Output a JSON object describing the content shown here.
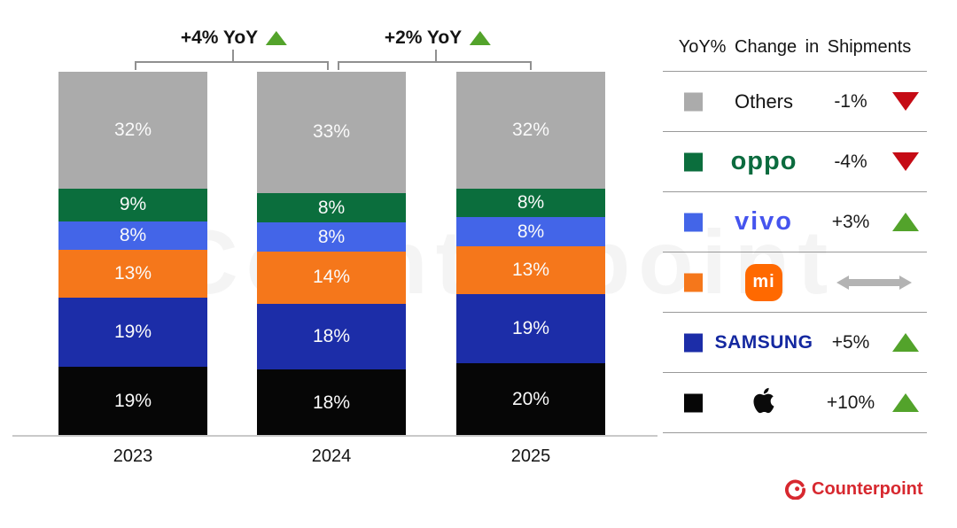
{
  "chart_data": {
    "type": "bar",
    "stacked": true,
    "order": "top-to-bottom",
    "unit": "%",
    "categories": [
      "2023",
      "2024",
      "2025"
    ],
    "series": [
      {
        "name": "Others",
        "color": "#ababab",
        "values": [
          32,
          33,
          32
        ]
      },
      {
        "name": "OPPO",
        "color": "#0b6e3d",
        "values": [
          9,
          8,
          8
        ]
      },
      {
        "name": "vivo",
        "color": "#4365e8",
        "values": [
          8,
          8,
          8
        ]
      },
      {
        "name": "Xiaomi",
        "color": "#f5771b",
        "values": [
          13,
          14,
          13
        ]
      },
      {
        "name": "Samsung",
        "color": "#1c2da8",
        "values": [
          19,
          18,
          19
        ]
      },
      {
        "name": "Apple",
        "color": "#060606",
        "values": [
          19,
          18,
          20
        ]
      }
    ],
    "annotations": [
      {
        "label": "+4% YoY",
        "between": [
          "2023",
          "2024"
        ],
        "direction": "up"
      },
      {
        "label": "+2% YoY",
        "between": [
          "2024",
          "2025"
        ],
        "direction": "up"
      }
    ],
    "ylim": [
      0,
      100
    ],
    "grid": false,
    "legend_position": "right"
  },
  "legend": {
    "title": "YoY% Change in Shipments",
    "rows": [
      {
        "brand": "Others",
        "logo": "text",
        "logo_text": "Others",
        "swatch": "#ababab",
        "change": "-1%",
        "trend": "down"
      },
      {
        "brand": "OPPO",
        "logo": "oppo",
        "logo_text": "oppo",
        "swatch": "#0b6e3d",
        "change": "-4%",
        "trend": "down"
      },
      {
        "brand": "vivo",
        "logo": "vivo",
        "logo_text": "vivo",
        "swatch": "#4365e8",
        "change": "+3%",
        "trend": "up"
      },
      {
        "brand": "Xiaomi",
        "logo": "mi",
        "logo_text": "mi",
        "swatch": "#f5771b",
        "change": "",
        "trend": "flat"
      },
      {
        "brand": "Samsung",
        "logo": "samsung",
        "logo_text": "SAMSUNG",
        "swatch": "#1c2da8",
        "change": "+5%",
        "trend": "up"
      },
      {
        "brand": "Apple",
        "logo": "apple",
        "logo_text": "",
        "swatch": "#060606",
        "change": "+10%",
        "trend": "up"
      }
    ]
  },
  "footer": {
    "logo_text": "Counterpoint"
  },
  "watermark": "Counterpoint",
  "colors": {
    "trend_up": "#53a32b",
    "trend_down": "#c50b15",
    "trend_flat": "#b3b3b3",
    "brand_red": "#d7282f",
    "bracket_gray": "#909090"
  }
}
